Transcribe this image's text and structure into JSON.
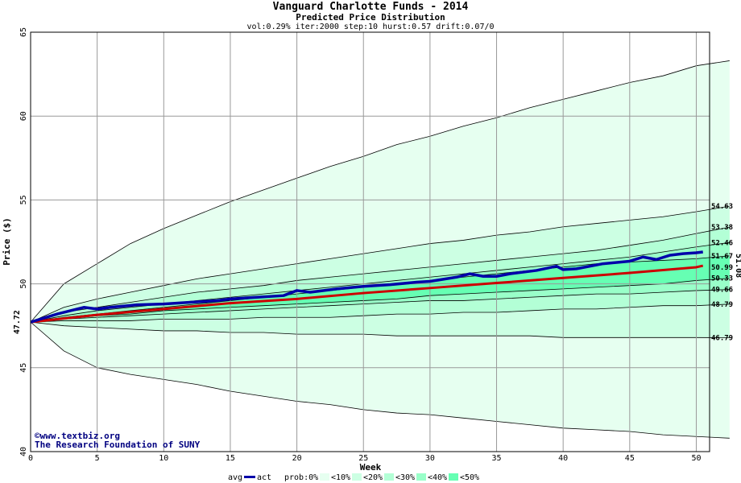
{
  "chart_data": {
    "type": "area",
    "title": "Vanguard Charlotte Funds - 2014",
    "subtitle": "Predicted Price Distribution",
    "params": "vol:0.29% iter:2000 step:10 hurst:0.57 drift:0.07/0",
    "xlabel": "Week",
    "ylabel": "Price ($)",
    "xlim": [
      0,
      51
    ],
    "ylim": [
      40,
      65
    ],
    "x_ticks": [
      0,
      5,
      10,
      15,
      20,
      25,
      30,
      35,
      40,
      45,
      50
    ],
    "y_ticks": [
      40,
      45,
      50,
      55,
      60,
      65
    ],
    "start_value": 47.72,
    "start_label": "47.72",
    "end_value": 51.08,
    "end_label": "51.08",
    "grid": true,
    "bands": [
      {
        "name": "<10%",
        "color": "#e6fff0",
        "upper": [
          47.72,
          50.0,
          51.2,
          52.4,
          53.3,
          54.1,
          54.9,
          55.6,
          56.3,
          57.0,
          57.6,
          58.3,
          58.8,
          59.4,
          59.9,
          60.5,
          61.0,
          61.5,
          62.0,
          62.4,
          63.0,
          63.3
        ],
        "lower": [
          47.72,
          46.0,
          45.0,
          44.6,
          44.3,
          44.0,
          43.6,
          43.3,
          43.0,
          42.8,
          42.5,
          42.3,
          42.2,
          42.0,
          41.8,
          41.6,
          41.4,
          41.3,
          41.2,
          41.0,
          40.9,
          40.8
        ]
      },
      {
        "name": "<20%",
        "color": "#ccffe3",
        "upper": [
          47.72,
          48.6,
          49.1,
          49.5,
          49.9,
          50.3,
          50.6,
          50.9,
          51.2,
          51.5,
          51.8,
          52.1,
          52.4,
          52.6,
          52.9,
          53.1,
          53.4,
          53.6,
          53.8,
          54.0,
          54.3,
          54.63
        ],
        "lower": [
          47.72,
          47.5,
          47.4,
          47.3,
          47.2,
          47.2,
          47.1,
          47.1,
          47.0,
          47.0,
          47.0,
          46.9,
          46.9,
          46.9,
          46.9,
          46.9,
          46.8,
          46.8,
          46.8,
          46.8,
          46.8,
          46.79
        ]
      },
      {
        "name": "<30%",
        "color": "#b3ffd6",
        "upper": [
          47.72,
          48.3,
          48.6,
          48.9,
          49.2,
          49.5,
          49.7,
          49.9,
          50.2,
          50.4,
          50.6,
          50.8,
          51.0,
          51.2,
          51.4,
          51.6,
          51.8,
          52.0,
          52.3,
          52.6,
          53.0,
          53.38
        ],
        "lower": [
          47.72,
          47.8,
          47.8,
          47.8,
          47.9,
          47.9,
          47.9,
          48.0,
          48.0,
          48.0,
          48.1,
          48.2,
          48.2,
          48.3,
          48.3,
          48.4,
          48.5,
          48.5,
          48.6,
          48.7,
          48.7,
          48.79
        ]
      },
      {
        "name": "<40%",
        "color": "#99ffc9",
        "upper": [
          47.72,
          48.1,
          48.4,
          48.6,
          48.8,
          49.0,
          49.2,
          49.4,
          49.6,
          49.8,
          50.0,
          50.2,
          50.4,
          50.6,
          50.8,
          51.0,
          51.2,
          51.4,
          51.6,
          51.9,
          52.2,
          52.46
        ],
        "lower": [
          47.72,
          47.9,
          48.0,
          48.1,
          48.2,
          48.3,
          48.4,
          48.5,
          48.6,
          48.7,
          48.8,
          48.9,
          49.0,
          49.0,
          49.1,
          49.2,
          49.3,
          49.4,
          49.4,
          49.5,
          49.6,
          49.66
        ]
      },
      {
        "name": "<50%",
        "color": "#66ffb3",
        "upper": [
          47.72,
          48.0,
          48.2,
          48.4,
          48.6,
          48.8,
          49.0,
          49.2,
          49.4,
          49.6,
          49.8,
          50.0,
          50.2,
          50.4,
          50.6,
          50.8,
          51.0,
          51.2,
          51.3,
          51.4,
          51.5,
          51.67
        ],
        "lower": [
          47.72,
          47.9,
          48.1,
          48.2,
          48.4,
          48.5,
          48.6,
          48.7,
          48.8,
          48.9,
          49.0,
          49.1,
          49.3,
          49.4,
          49.5,
          49.6,
          49.7,
          49.8,
          49.9,
          50.0,
          50.2,
          50.33
        ]
      }
    ],
    "right_labels": [
      "54.63",
      "53.38",
      "52.46",
      "51.67",
      "50.99",
      "50.33",
      "49.66",
      "48.79",
      "46.79"
    ],
    "right_label_values": [
      54.63,
      53.38,
      52.46,
      51.67,
      50.99,
      50.33,
      49.66,
      48.79,
      46.79
    ],
    "series": [
      {
        "name": "avg",
        "color": "#cc0000",
        "x": [
          0,
          5,
          10,
          15,
          20,
          25,
          30,
          35,
          40,
          45,
          50,
          50.5
        ],
        "values": [
          47.72,
          48.15,
          48.5,
          48.85,
          49.1,
          49.45,
          49.75,
          50.05,
          50.35,
          50.65,
          50.99,
          51.08
        ]
      },
      {
        "name": "prob",
        "color": "#0000aa",
        "x": [
          0,
          2,
          4,
          5,
          6,
          8,
          10,
          12,
          14,
          15,
          17,
          19,
          20,
          21,
          23,
          25,
          27,
          29,
          30,
          32,
          33,
          34,
          35,
          36,
          38,
          39.5,
          40,
          41,
          43,
          45,
          46,
          47,
          48,
          49,
          50,
          50.5
        ],
        "values": [
          47.72,
          48.2,
          48.6,
          48.5,
          48.6,
          48.75,
          48.8,
          48.9,
          49.0,
          49.1,
          49.2,
          49.3,
          49.6,
          49.5,
          49.7,
          49.85,
          49.95,
          50.1,
          50.15,
          50.4,
          50.6,
          50.45,
          50.45,
          50.6,
          50.8,
          51.05,
          50.85,
          50.9,
          51.2,
          51.35,
          51.6,
          51.45,
          51.7,
          51.8,
          51.85,
          51.9
        ]
      }
    ],
    "legend": {
      "labels": [
        "avg",
        "act",
        "prob:0%",
        "<10%",
        "<20%",
        "<30%",
        "<40%",
        "<50%"
      ],
      "placement": "bottom"
    },
    "credits": {
      "line1": "©www.textbiz.org",
      "line2": "The Research Foundation of SUNY"
    }
  }
}
